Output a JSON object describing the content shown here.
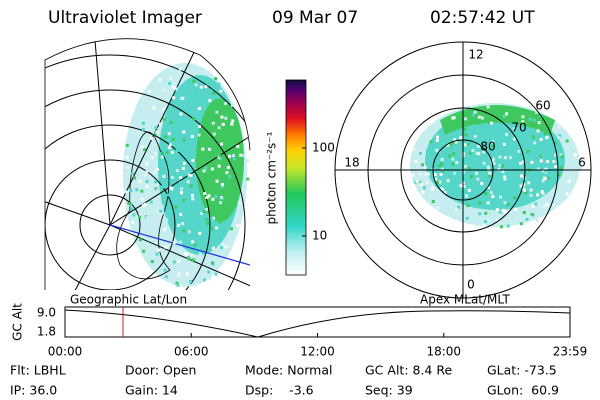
{
  "header": {
    "title": "Ultraviolet Imager",
    "date": "09 Mar 07",
    "time": "02:57:42 UT"
  },
  "left_panel": {
    "label": "Geographic Lat/Lon"
  },
  "right_panel": {
    "label": "Apex MLat/MLT",
    "mlt_labels": [
      "12",
      "18",
      "6",
      "0"
    ],
    "lat_labels": [
      "60",
      "70",
      "80"
    ]
  },
  "colorbar": {
    "unit": "photon cm⁻²s⁻¹",
    "ticks": [
      "100",
      "10"
    ]
  },
  "altitude_plot": {
    "y_label": "GC Alt",
    "y_ticks": [
      "9.0",
      "1.8"
    ],
    "x_ticks": [
      "00:00",
      "06:00",
      "12:00",
      "18:00",
      "23:59"
    ]
  },
  "footer": {
    "rows": [
      [
        "Flt: LBHL",
        "Door: Open",
        "Mode: Normal",
        "GC Alt: 8.4 Re",
        "GLat: -73.5"
      ],
      [
        "IP: 36.0",
        "Gain: 14",
        "Dsp:    -3.6",
        "Seq: 39",
        "GLon:  60.9"
      ]
    ]
  }
}
